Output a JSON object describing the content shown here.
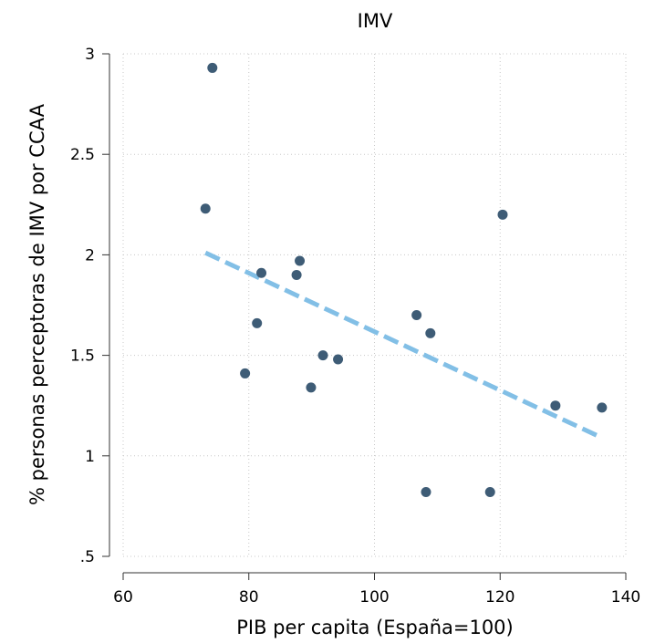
{
  "chart_data": {
    "type": "scatter",
    "title": "IMV",
    "xlabel": "PIB per capita (España=100)",
    "ylabel": "% personas perceptoras de IMV por CCAA",
    "xlim": [
      60,
      140
    ],
    "ylim": [
      0.5,
      3
    ],
    "xticks": [
      60,
      80,
      100,
      120,
      140
    ],
    "xtick_labels": [
      "60",
      "80",
      "100",
      "120",
      "140"
    ],
    "yticks": [
      0.5,
      1,
      1.5,
      2,
      2.5,
      3
    ],
    "ytick_labels": [
      ".5",
      "1",
      "1.5",
      "2",
      "2.5",
      "3"
    ],
    "grid": true,
    "point_color": "#3e5c76",
    "fit_color": "#82bfe6",
    "series": [
      {
        "type": "scatter",
        "points": [
          {
            "x": 74.2,
            "y": 2.93
          },
          {
            "x": 73.1,
            "y": 2.23
          },
          {
            "x": 79.4,
            "y": 1.41
          },
          {
            "x": 81.3,
            "y": 1.66
          },
          {
            "x": 82.0,
            "y": 1.91
          },
          {
            "x": 87.6,
            "y": 1.9
          },
          {
            "x": 88.1,
            "y": 1.97
          },
          {
            "x": 89.9,
            "y": 1.34
          },
          {
            "x": 91.8,
            "y": 1.5
          },
          {
            "x": 94.2,
            "y": 1.48
          },
          {
            "x": 106.7,
            "y": 1.7
          },
          {
            "x": 108.2,
            "y": 0.82
          },
          {
            "x": 108.9,
            "y": 1.61
          },
          {
            "x": 118.4,
            "y": 0.82
          },
          {
            "x": 120.4,
            "y": 2.2
          },
          {
            "x": 128.8,
            "y": 1.25
          },
          {
            "x": 136.2,
            "y": 1.24
          }
        ]
      },
      {
        "type": "line",
        "style": "dashed",
        "points": [
          {
            "x": 73.1,
            "y": 2.01
          },
          {
            "x": 136.2,
            "y": 1.09
          }
        ]
      }
    ]
  }
}
